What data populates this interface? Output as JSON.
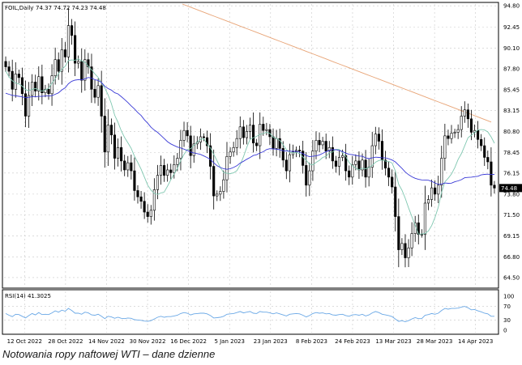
{
  "caption": "Notowania ropy naftowej WTI – dane dzienne",
  "chart_data": {
    "type": "candlestick",
    "header_label": "FOIL,Daily",
    "ohlc_header": "74.37 74.72 74.23 74.48",
    "current_price_label": "74.48",
    "ylim": [
      63.5,
      95.0
    ],
    "y_ticks": [
      "94.80",
      "92.45",
      "90.10",
      "87.80",
      "85.45",
      "83.15",
      "80.80",
      "78.45",
      "76.15",
      "73.80",
      "71.50",
      "69.15",
      "66.80",
      "64.50"
    ],
    "x_labels": [
      "12 Oct 2022",
      "28 Oct 2022",
      "14 Nov 2022",
      "30 Nov 2022",
      "16 Dec 2022",
      "5 Jan 2023",
      "23 Jan 2023",
      "8 Feb 2023",
      "24 Feb 2023",
      "13 Mar 2023",
      "28 Mar 2023",
      "14 Apr 2023"
    ],
    "candle_close": [
      88.0,
      87.5,
      85.5,
      87.2,
      86.8,
      85.0,
      82.5,
      84.8,
      86.3,
      85.3,
      86.9,
      85.1,
      85.5,
      85.0,
      87.0,
      88.8,
      87.5,
      89.9,
      89.1,
      92.6,
      91.5,
      88.4,
      88.6,
      86.5,
      88.8,
      88.0,
      85.5,
      84.6,
      85.9,
      82.5,
      78.5,
      81.5,
      80.4,
      77.8,
      79.0,
      77.5,
      76.5,
      77.3,
      76.4,
      74.2,
      73.5,
      73.0,
      71.8,
      71.3,
      72.0,
      74.3,
      75.9,
      77.0,
      75.9,
      76.5,
      76.2,
      77.1,
      77.8,
      79.8,
      80.9,
      80.3,
      78.1,
      79.4,
      79.6,
      80.2,
      80.1,
      79.2,
      76.9,
      73.6,
      73.8,
      74.1,
      75.4,
      78.0,
      78.5,
      79.0,
      80.0,
      81.3,
      80.1,
      80.8,
      81.5,
      79.5,
      79.2,
      81.6,
      80.9,
      81.0,
      80.2,
      78.9,
      80.0,
      78.9,
      77.6,
      76.4,
      78.2,
      78.5,
      78.7,
      78.6,
      77.0,
      74.8,
      76.4,
      78.6,
      79.8,
      79.3,
      79.7,
      78.6,
      79.0,
      77.5,
      76.9,
      77.9,
      78.1,
      76.4,
      75.7,
      77.1,
      77.5,
      76.5,
      77.6,
      75.7,
      76.8,
      79.2,
      80.5,
      79.7,
      77.6,
      76.7,
      75.7,
      74.6,
      71.3,
      67.6,
      68.3,
      66.7,
      67.8,
      69.4,
      70.6,
      69.3,
      69.3,
      72.8,
      73.2,
      74.5,
      73.8,
      74.8,
      77.8,
      80.3,
      80.0,
      80.6,
      80.7,
      81.0,
      82.5,
      83.2,
      82.2,
      80.7,
      80.9,
      79.9,
      79.2,
      77.9,
      77.4,
      74.8,
      74.48
    ],
    "sma_short": [
      87.54,
      86.89,
      86.44,
      86.2,
      86.08,
      85.85,
      85.46,
      85.33,
      85.5,
      85.58,
      85.43,
      85.3,
      85.44,
      85.6,
      86.17,
      86.68,
      87.24,
      87.73,
      88.05,
      88.7,
      88.76,
      88.73,
      88.89,
      88.66,
      88.5,
      88.07,
      87.67,
      87.21,
      86.82,
      86.22,
      85.64,
      84.89,
      83.9,
      82.6,
      81.83,
      80.87,
      80.12,
      79.52,
      78.92,
      78.03,
      77.33,
      76.58,
      75.71,
      74.81,
      74.24,
      73.88,
      73.76,
      73.93,
      74.03,
      74.69,
      75.4,
      76.05,
      76.68,
      77.52,
      78.24,
      78.77,
      78.87,
      79.22,
      79.59,
      79.91,
      79.99,
      79.35,
      78.95,
      78.25,
      77.52,
      76.77,
      76.22,
      76.13,
      76.09,
      76.17,
      76.42,
      77.06,
      77.98,
      79.01,
      79.92,
      80.1,
      80.24,
      80.46,
      80.56,
      80.71,
      80.58,
      80.14,
      80.03,
      79.79,
      79.31,
      78.76,
      78.47,
      78.4,
      78.44,
      78.33,
      77.94,
      77.58,
      77.16,
      77.07,
      77.35,
      77.57,
      77.9,
      78.01,
      78.42,
      78.5,
      78.79,
      78.79,
      78.43,
      77.99,
      77.34,
      76.95,
      76.71,
      76.52,
      76.7,
      76.62,
      76.77,
      77.0,
      77.36,
      77.55,
      77.61,
      77.49,
      77.45,
      77.27,
      76.4,
      74.9,
      74.24,
      73.33,
      72.28,
      71.31,
      70.31,
      69.35,
      69.35,
      69.41,
      69.69,
      70.3,
      71.19,
      72.34,
      73.98,
      75.17,
      75.57,
      76.05,
      76.76,
      77.68,
      78.31,
      79.19,
      80.1,
      80.37,
      80.65,
      80.95,
      81.0,
      80.96,
      80.74,
      80.19,
      79.48
    ],
    "sma_long": [
      85.05,
      84.94,
      84.82,
      84.77,
      84.71,
      84.66,
      84.55,
      84.6,
      84.66,
      84.66,
      84.7,
      84.7,
      84.75,
      84.75,
      84.78,
      84.94,
      85.1,
      85.42,
      85.66,
      86.11,
      86.39,
      86.52,
      86.57,
      86.54,
      86.66,
      86.81,
      86.74,
      86.57,
      86.48,
      86.25,
      85.83,
      85.58,
      85.41,
      85.11,
      84.98,
      84.67,
      84.36,
      84.02,
      83.65,
      83.3,
      82.9,
      82.57,
      82.1,
      81.71,
      81.26,
      80.94,
      80.69,
      80.35,
      80.0,
      79.65,
      79.4,
      79.22,
      79.05,
      78.95,
      78.82,
      78.67,
      78.49,
      78.4,
      78.32,
      78.23,
      78.06,
      77.89,
      77.66,
      77.3,
      76.97,
      76.78,
      76.63,
      76.57,
      76.64,
      76.78,
      76.97,
      77.26,
      77.46,
      77.69,
      77.89,
      78.11,
      78.19,
      78.39,
      78.53,
      78.77,
      78.87,
      78.84,
      78.82,
      78.75,
      78.64,
      78.62,
      78.6,
      78.57,
      78.57,
      78.48,
      78.31,
      78.1,
      77.98,
      78.02,
      78.07,
      78.18,
      78.35,
      78.54,
      78.68,
      78.77,
      78.76,
      78.65,
      78.55,
      78.37,
      78.24,
      78.2,
      78.12,
      78.05,
      78.03,
      77.84,
      77.76,
      77.84,
      77.92,
      77.9,
      77.86,
      77.84,
      77.74,
      77.61,
      77.4,
      77.03,
      76.67,
      76.26,
      75.97,
      75.74,
      75.57,
      75.45,
      75.39,
      75.38,
      75.35,
      75.22,
      75.05,
      74.89,
      74.93,
      75.04,
      75.01,
      75.03,
      75.18,
      75.28,
      75.41,
      75.63,
      75.67,
      75.69,
      75.75,
      75.79,
      75.95,
      76.0,
      76.03,
      75.98,
      76.0
    ],
    "ma200_segment": [
      95.0,
      94.72,
      94.44,
      94.16,
      93.88,
      93.6,
      93.32,
      93.04,
      92.76,
      92.48,
      92.2,
      91.92,
      91.64,
      91.36,
      91.08,
      90.8,
      90.52,
      90.24,
      89.96,
      89.68,
      89.4,
      89.12,
      88.84,
      88.56,
      88.28,
      88.0,
      87.72,
      87.44,
      87.16,
      86.88,
      86.6,
      86.32,
      86.04,
      85.76,
      85.48,
      85.2,
      84.92,
      84.64,
      84.36,
      84.08,
      83.8,
      83.52,
      83.24,
      82.96,
      82.68,
      82.4,
      82.12,
      81.84
    ],
    "rsi_label": "RSI(14) 41.3025",
    "rsi_ticks": [
      "100",
      "70",
      "30",
      "0"
    ],
    "rsi_ylim": [
      0,
      100
    ],
    "rsi_values": [
      49,
      44,
      40,
      47,
      46,
      41,
      36,
      43,
      49,
      45,
      52,
      46,
      47,
      46,
      51,
      57,
      53,
      59,
      56,
      64,
      58,
      50,
      50,
      47,
      53,
      51,
      45,
      44,
      47,
      41,
      34,
      41,
      39,
      35,
      38,
      35,
      34,
      36,
      35,
      31,
      30,
      29,
      27,
      26,
      28,
      33,
      38,
      41,
      38,
      40,
      40,
      42,
      44,
      49,
      52,
      50,
      45,
      48,
      49,
      50,
      50,
      48,
      43,
      36,
      37,
      38,
      41,
      47,
      48,
      49,
      52,
      55,
      51,
      53,
      55,
      50,
      49,
      55,
      53,
      53,
      51,
      48,
      51,
      48,
      45,
      42,
      47,
      48,
      49,
      48,
      44,
      39,
      43,
      49,
      52,
      50,
      51,
      48,
      49,
      45,
      44,
      46,
      47,
      43,
      41,
      45,
      46,
      44,
      47,
      42,
      45,
      51,
      55,
      52,
      47,
      45,
      43,
      40,
      33,
      26,
      28,
      25,
      28,
      33,
      37,
      34,
      34,
      44,
      46,
      49,
      47,
      50,
      58,
      64,
      62,
      64,
      64,
      65,
      68,
      70,
      66,
      60,
      61,
      57,
      54,
      50,
      48,
      41,
      41
    ],
    "colors": {
      "bull": "#ffffff",
      "bear": "#000000",
      "outline": "#000000",
      "sma_short": "#7fc7b0",
      "sma_long": "#3a3ad6",
      "ma200": "#e8a476",
      "rsi": "#6aa8e6",
      "grid": "#c8c8c8",
      "price_tag": "#000000"
    }
  }
}
